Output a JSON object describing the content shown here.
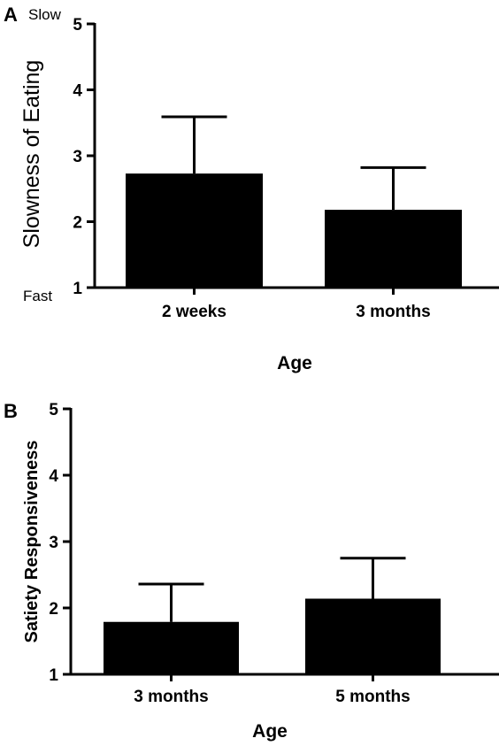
{
  "chart_data": [
    {
      "panel": "A",
      "type": "bar",
      "categories": [
        "2 weeks",
        "3 months"
      ],
      "values": [
        2.73,
        2.18
      ],
      "error_upper": [
        3.59,
        2.82
      ],
      "ylabel": "Slowness of Eating",
      "xlabel": "Age",
      "ylim": [
        1,
        5
      ],
      "yticks": [
        "1",
        "2",
        "3",
        "4",
        "5"
      ],
      "annotations": {
        "top": "Slow",
        "bottom": "Fast"
      },
      "bar_color": "#000000"
    },
    {
      "panel": "B",
      "type": "bar",
      "categories": [
        "3 months",
        "5 months"
      ],
      "values": [
        1.79,
        2.14
      ],
      "error_upper": [
        2.36,
        2.75
      ],
      "ylabel": "Satiety Responsiveness",
      "xlabel": "Age",
      "ylim": [
        1,
        5
      ],
      "yticks": [
        "1",
        "2",
        "3",
        "4",
        "5"
      ],
      "bar_color": "#000000"
    }
  ]
}
